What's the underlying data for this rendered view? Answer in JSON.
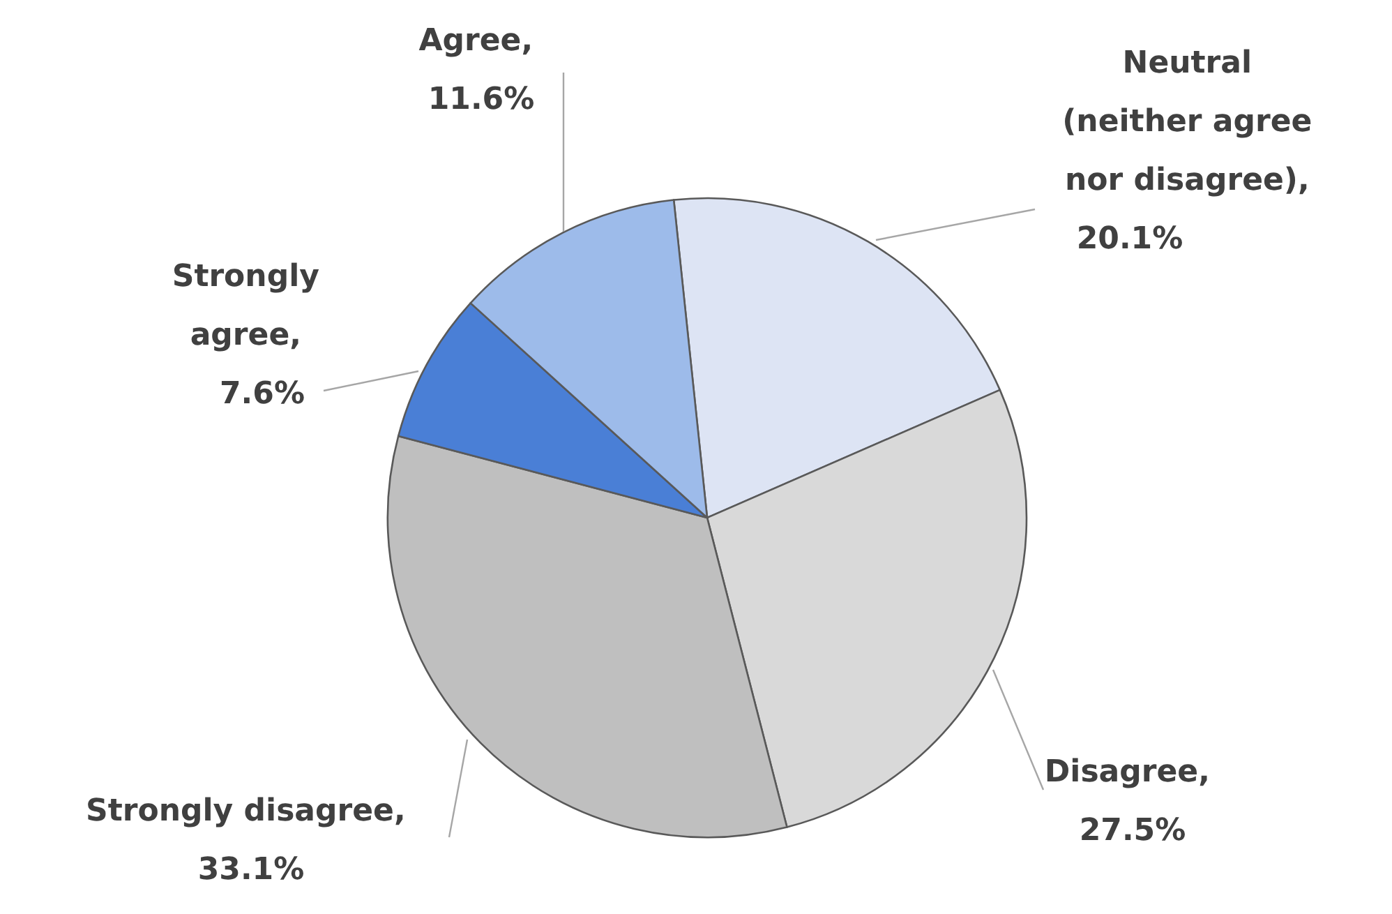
{
  "chart_data": {
    "type": "pie",
    "categories": [
      "Neutral (neither agree nor disagree)",
      "Disagree",
      "Strongly disagree",
      "Strongly agree",
      "Agree"
    ],
    "values": [
      20.1,
      27.5,
      33.1,
      7.6,
      11.6
    ],
    "value_labels": [
      ", 20.1%",
      ", 27.5%",
      ", 33.1%",
      ", 7.6%",
      ", 11.6%"
    ],
    "colors": [
      "#dde4f4",
      "#d9d9d9",
      "#bfbfbf",
      "#4a7fd6",
      "#9dbbea"
    ]
  }
}
